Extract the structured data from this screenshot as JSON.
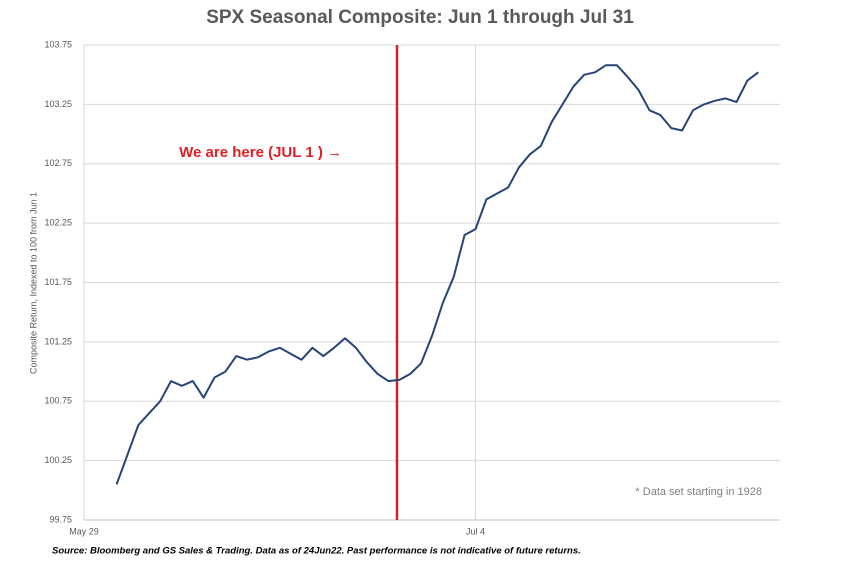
{
  "chart_data": {
    "type": "line",
    "title": "SPX Seasonal Composite: Jun 1 through Jul 31",
    "y_label": "Composite Return, Indexed to 100 from Jun 1",
    "annotation": "We are here (JUL 1 ) →",
    "note": "* Data set starting in 1928",
    "source": "Source: Bloomberg and GS Sales & Trading. Data as of 24Jun22. Past performance is not indicative of future returns.",
    "categories": [
      "May 29",
      null,
      null,
      null,
      null,
      null,
      null,
      null,
      null,
      null,
      null,
      null,
      null,
      null,
      null,
      null,
      null,
      null,
      null,
      null,
      null,
      null,
      null,
      null,
      null,
      null,
      null,
      null,
      null,
      null,
      null,
      null,
      null,
      null,
      null,
      null,
      "Jul 4",
      null,
      null,
      null,
      null,
      null,
      null,
      null,
      null,
      null,
      null,
      null,
      null,
      null,
      null,
      null,
      null,
      null,
      null,
      null,
      null,
      null,
      null,
      null,
      null,
      null,
      null,
      null,
      null
    ],
    "series": [
      {
        "name": "SPX Seasonal Composite",
        "color": "#264478",
        "values": [
          null,
          null,
          null,
          100.05,
          100.3,
          100.55,
          100.65,
          100.75,
          100.92,
          100.88,
          100.92,
          100.78,
          100.95,
          101.0,
          101.13,
          101.1,
          101.12,
          101.17,
          101.2,
          101.15,
          101.1,
          101.2,
          101.13,
          101.2,
          101.28,
          101.2,
          101.08,
          100.98,
          100.92,
          100.93,
          100.98,
          101.07,
          101.3,
          101.58,
          101.8,
          102.15,
          102.2,
          102.45,
          102.5,
          102.55,
          102.72,
          102.83,
          102.9,
          103.1,
          103.25,
          103.4,
          103.5,
          103.52,
          103.58,
          103.58,
          103.48,
          103.37,
          103.2,
          103.16,
          103.05,
          103.03,
          103.2,
          103.25,
          103.28,
          103.3,
          103.27,
          103.45,
          103.52,
          null,
          null
        ]
      }
    ],
    "ylim": [
      99.75,
      103.75
    ],
    "yticks": [
      99.75,
      100.25,
      100.75,
      101.25,
      101.75,
      102.25,
      102.75,
      103.25,
      103.75
    ],
    "grid": true,
    "marker_color": "#cc2229"
  }
}
